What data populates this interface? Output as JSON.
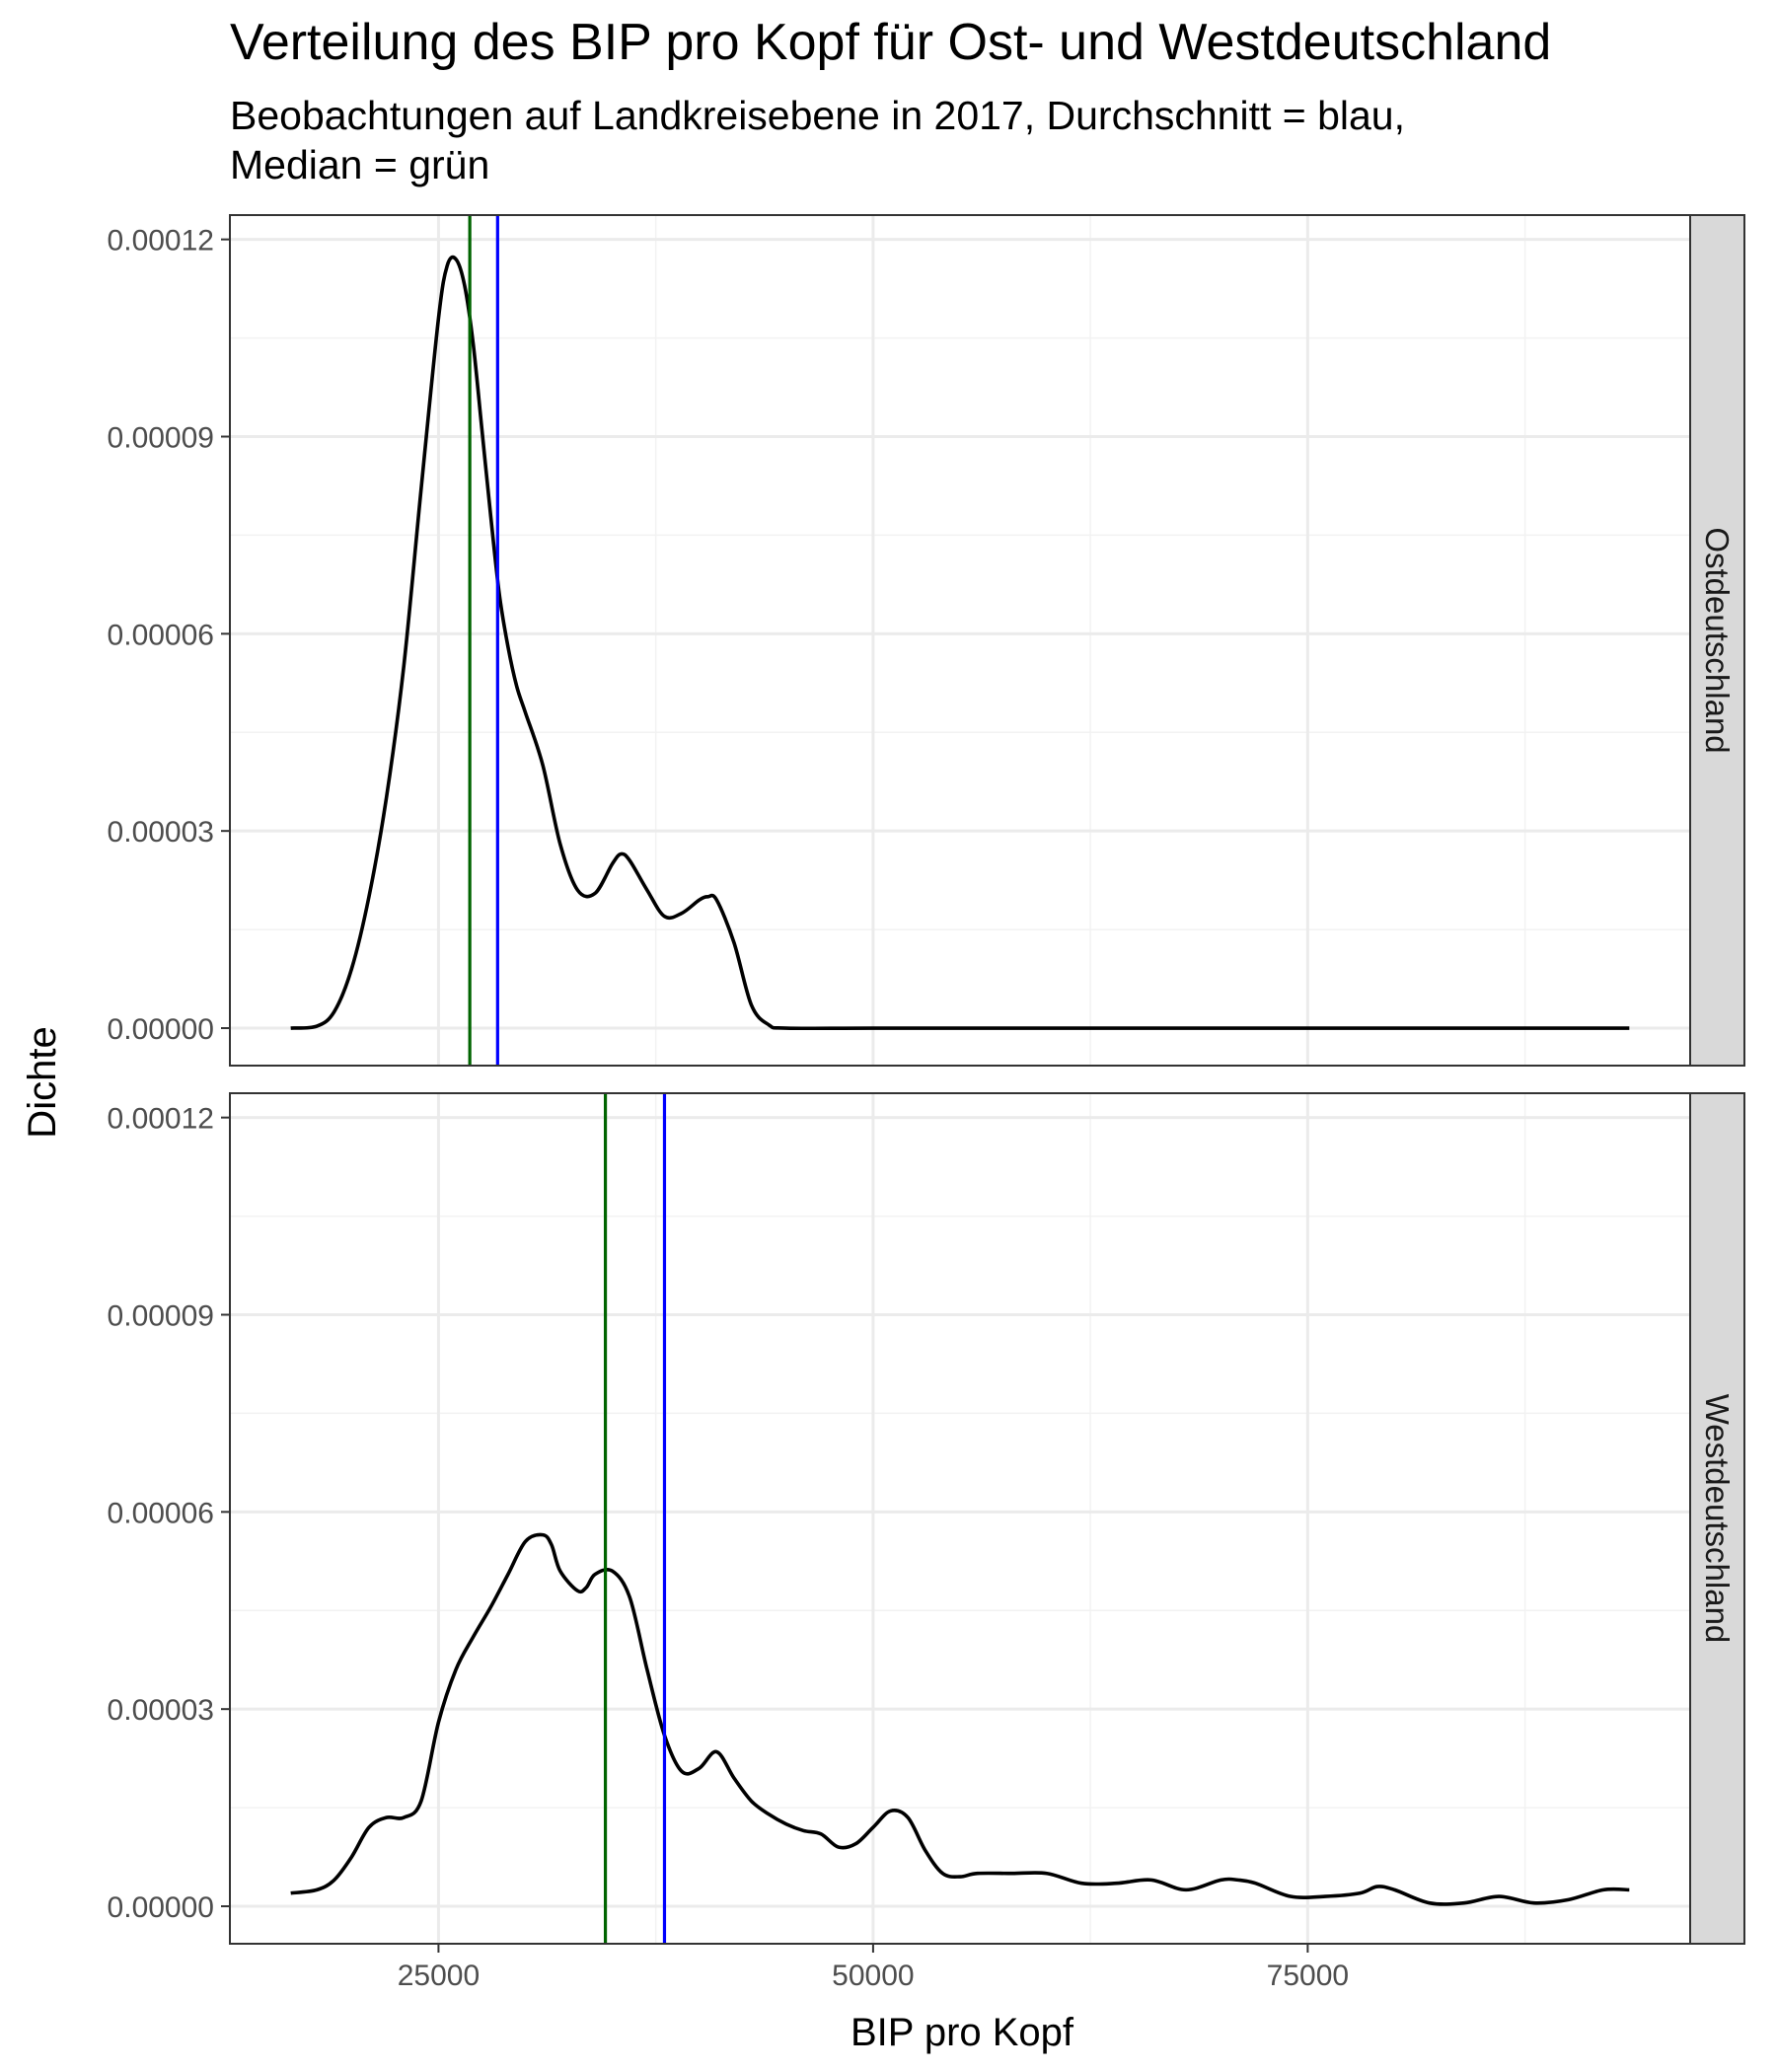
{
  "chart_data": {
    "type": "line",
    "title": "Verteilung des BIP pro Kopf für Ost- und Westdeutschland",
    "subtitle_lines": [
      "Beobachtungen auf Landkreisebene in 2017, Durchschnitt = blau,",
      "Median = grün"
    ],
    "xlabel": "BIP pro Kopf",
    "ylabel": "Dichte",
    "xlim": [
      13000,
      97000
    ],
    "ylim": [
      -5.7e-06,
      0.0001237
    ],
    "x_ticks": [
      25000,
      50000,
      75000
    ],
    "x_tick_labels": [
      "25000",
      "50000",
      "75000"
    ],
    "y_ticks": [
      0,
      3e-05,
      6e-05,
      9e-05,
      0.00012
    ],
    "y_tick_labels": [
      "0.00000",
      "0.00003",
      "0.00006",
      "0.00009",
      "0.00012"
    ],
    "grid": true,
    "line_colors": {
      "density": "#000000",
      "mean": "#0000ff",
      "median": "#006400"
    },
    "panels": [
      {
        "label": "Ostdeutschland",
        "mean": 28400,
        "median": 26800,
        "x": [
          16500,
          18000,
          19000,
          20000,
          21000,
          22000,
          23000,
          24000,
          25000,
          25500,
          26000,
          26500,
          27000,
          27500,
          28000,
          28500,
          29000,
          29500,
          30000,
          31000,
          32000,
          33000,
          34000,
          35000,
          35500,
          36000,
          37000,
          38000,
          39000,
          40000,
          40500,
          41000,
          42000,
          43000,
          44000,
          45000,
          50000,
          60000,
          70000,
          80000,
          90000,
          93500
        ],
        "y": [
          0,
          3e-07,
          2.5e-06,
          9e-06,
          2e-05,
          3.5e-05,
          5.5e-05,
          8.2e-05,
          0.000108,
          0.000116,
          0.000117,
          0.000113,
          0.000104,
          9.1e-05,
          7.8e-05,
          6.6e-05,
          5.8e-05,
          5.2e-05,
          4.8e-05,
          4e-05,
          2.8e-05,
          2.1e-05,
          2.05e-05,
          2.5e-05,
          2.65e-05,
          2.55e-05,
          2.1e-05,
          1.7e-05,
          1.75e-05,
          1.95e-05,
          2e-05,
          1.95e-05,
          1.3e-05,
          3.5e-06,
          5e-07,
          0,
          0,
          0,
          0,
          0,
          0,
          0
        ]
      },
      {
        "label": "Westdeutschland",
        "mean": 38000,
        "median": 34600,
        "x": [
          16500,
          18000,
          19000,
          20000,
          21000,
          22000,
          23000,
          24000,
          25000,
          26000,
          27000,
          28000,
          29000,
          30000,
          31000,
          31500,
          32000,
          33000,
          33500,
          34000,
          35000,
          36000,
          37000,
          38000,
          39000,
          40000,
          41000,
          42000,
          43000,
          44000,
          45000,
          46000,
          47000,
          48000,
          49000,
          50000,
          51000,
          52000,
          53000,
          54000,
          55000,
          56000,
          58000,
          60000,
          62000,
          64000,
          66000,
          68000,
          70000,
          71000,
          72000,
          74000,
          76000,
          78000,
          79000,
          80000,
          82000,
          84000,
          86000,
          88000,
          90000,
          92000,
          93500
        ],
        "y": [
          2e-06,
          2.5e-06,
          4e-06,
          7.5e-06,
          1.2e-05,
          1.35e-05,
          1.35e-05,
          1.6e-05,
          2.8e-05,
          3.6e-05,
          4.1e-05,
          4.55e-05,
          5.05e-05,
          5.55e-05,
          5.65e-05,
          5.5e-05,
          5.1e-05,
          4.8e-05,
          4.85e-05,
          5.05e-05,
          5.1e-05,
          4.7e-05,
          3.6e-05,
          2.6e-05,
          2.05e-05,
          2.1e-05,
          2.35e-05,
          1.95e-05,
          1.6e-05,
          1.4e-05,
          1.25e-05,
          1.15e-05,
          1.1e-05,
          9e-06,
          9.5e-06,
          1.2e-05,
          1.45e-05,
          1.35e-05,
          8.5e-06,
          5e-06,
          4.5e-06,
          5e-06,
          5e-06,
          5e-06,
          3.5e-06,
          3.5e-06,
          4e-06,
          2.5e-06,
          4e-06,
          4e-06,
          3.5e-06,
          1.5e-06,
          1.5e-06,
          2e-06,
          3e-06,
          2.5e-06,
          5e-07,
          5e-07,
          1.5e-06,
          5e-07,
          1e-06,
          2.5e-06,
          2.5e-06
        ]
      }
    ]
  }
}
